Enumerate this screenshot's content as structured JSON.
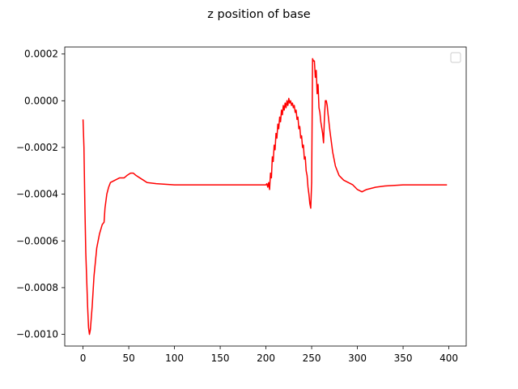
{
  "chart_data": {
    "type": "line",
    "title": "z position of base",
    "xlabel": "",
    "ylabel": "",
    "xlim": [
      -20,
      419
    ],
    "ylim": [
      -0.00105,
      0.00023
    ],
    "xticks": [
      0,
      50,
      100,
      150,
      200,
      250,
      300,
      350,
      400
    ],
    "xtick_labels": [
      "0",
      "50",
      "100",
      "150",
      "200",
      "250",
      "300",
      "350",
      "400"
    ],
    "yticks": [
      0.0002,
      0.0,
      -0.0002,
      -0.0004,
      -0.0006,
      -0.0008,
      -0.001
    ],
    "ytick_labels": [
      "0.0002",
      "0.0000",
      "−0.0002",
      "−0.0004",
      "−0.0006",
      "−0.0008",
      "−0.0010"
    ],
    "grid": false,
    "legend": {
      "position": "top-right",
      "entries": []
    },
    "series": [
      {
        "color": "#ff0000",
        "points": [
          [
            0,
            -8e-05
          ],
          [
            1,
            -0.0002
          ],
          [
            2,
            -0.00045
          ],
          [
            3,
            -0.00065
          ],
          [
            5,
            -0.00088
          ],
          [
            6,
            -0.00097
          ],
          [
            7,
            -0.001
          ],
          [
            8,
            -0.00098
          ],
          [
            10,
            -0.00088
          ],
          [
            12,
            -0.00075
          ],
          [
            15,
            -0.00063
          ],
          [
            18,
            -0.00057
          ],
          [
            21,
            -0.00053
          ],
          [
            23,
            -0.00052
          ],
          [
            24,
            -0.00046
          ],
          [
            26,
            -0.0004
          ],
          [
            28,
            -0.00037
          ],
          [
            30,
            -0.00035
          ],
          [
            35,
            -0.00034
          ],
          [
            40,
            -0.00033
          ],
          [
            45,
            -0.00033
          ],
          [
            48,
            -0.00032
          ],
          [
            52,
            -0.00031
          ],
          [
            55,
            -0.00031
          ],
          [
            58,
            -0.00032
          ],
          [
            62,
            -0.00033
          ],
          [
            66,
            -0.00034
          ],
          [
            70,
            -0.00035
          ],
          [
            80,
            -0.000355
          ],
          [
            100,
            -0.00036
          ],
          [
            150,
            -0.00036
          ],
          [
            200,
            -0.00036
          ],
          [
            201,
            -0.000355
          ],
          [
            202,
            -0.00037
          ],
          [
            203,
            -0.00035
          ],
          [
            204,
            -0.00038
          ],
          [
            205,
            -0.00031
          ],
          [
            206,
            -0.00033
          ],
          [
            207,
            -0.00024
          ],
          [
            208,
            -0.00026
          ],
          [
            209,
            -0.00019
          ],
          [
            210,
            -0.00021
          ],
          [
            211,
            -0.00014
          ],
          [
            212,
            -0.00016
          ],
          [
            213,
            -0.0001
          ],
          [
            214,
            -0.00012
          ],
          [
            215,
            -7e-05
          ],
          [
            216,
            -9e-05
          ],
          [
            217,
            -4e-05
          ],
          [
            218,
            -6e-05
          ],
          [
            219,
            -2e-05
          ],
          [
            220,
            -4e-05
          ],
          [
            221,
            -1e-05
          ],
          [
            222,
            -3e-05
          ],
          [
            223,
            0.0
          ],
          [
            224,
            -2e-05
          ],
          [
            225,
            1e-05
          ],
          [
            226,
            -1e-05
          ],
          [
            227,
            0.0
          ],
          [
            228,
            -2e-05
          ],
          [
            229,
            -1e-05
          ],
          [
            230,
            -3e-05
          ],
          [
            231,
            -2e-05
          ],
          [
            232,
            -5e-05
          ],
          [
            233,
            -4e-05
          ],
          [
            234,
            -8e-05
          ],
          [
            235,
            -7e-05
          ],
          [
            236,
            -0.00012
          ],
          [
            237,
            -0.00011
          ],
          [
            238,
            -0.00016
          ],
          [
            239,
            -0.00015
          ],
          [
            240,
            -0.0002
          ],
          [
            241,
            -0.00019
          ],
          [
            242,
            -0.00025
          ],
          [
            243,
            -0.00024
          ],
          [
            244,
            -0.0003
          ],
          [
            245,
            -0.00032
          ],
          [
            246,
            -0.00037
          ],
          [
            247,
            -0.0004
          ],
          [
            248,
            -0.00044
          ],
          [
            249,
            -0.00046
          ],
          [
            250,
            -0.00035
          ],
          [
            251,
            0.00018
          ],
          [
            252,
            0.00017
          ],
          [
            253,
            0.00017
          ],
          [
            254,
            0.0001
          ],
          [
            255,
            0.00013
          ],
          [
            256,
            3e-05
          ],
          [
            257,
            7e-05
          ],
          [
            258,
            -3e-05
          ],
          [
            259,
            -5e-05
          ],
          [
            260,
            -9e-05
          ],
          [
            262,
            -0.00014
          ],
          [
            263,
            -0.00018
          ],
          [
            264,
            -7e-05
          ],
          [
            265,
            0.0
          ],
          [
            266,
            0.0
          ],
          [
            267,
            -2e-05
          ],
          [
            268,
            -6e-05
          ],
          [
            270,
            -0.00013
          ],
          [
            273,
            -0.00022
          ],
          [
            276,
            -0.00028
          ],
          [
            280,
            -0.00032
          ],
          [
            285,
            -0.00034
          ],
          [
            290,
            -0.00035
          ],
          [
            295,
            -0.00036
          ],
          [
            300,
            -0.00038
          ],
          [
            305,
            -0.00039
          ],
          [
            310,
            -0.00038
          ],
          [
            320,
            -0.00037
          ],
          [
            330,
            -0.000365
          ],
          [
            350,
            -0.00036
          ],
          [
            398,
            -0.00036
          ]
        ]
      }
    ]
  }
}
